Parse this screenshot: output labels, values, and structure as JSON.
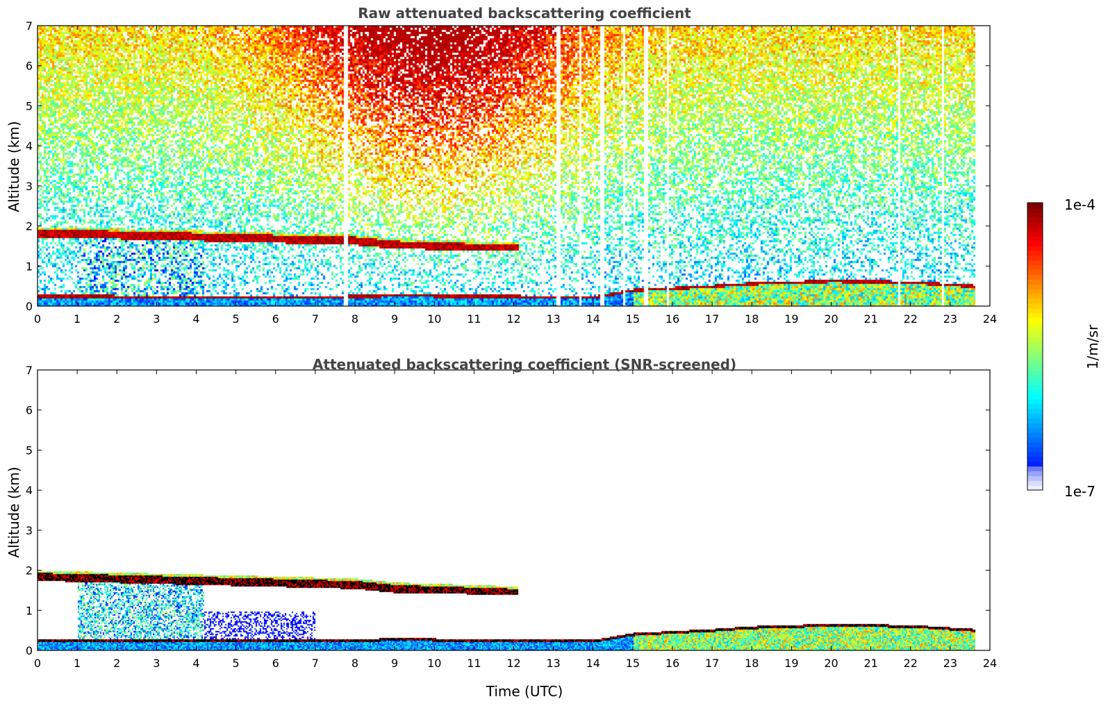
{
  "chart_data": [
    {
      "type": "heatmap",
      "title": "Raw attenuated backscattering coefficient",
      "xlabel": "",
      "ylabel": "Altitude (km)",
      "xlim": [
        0,
        24
      ],
      "ylim": [
        0,
        7
      ],
      "xticks": [
        0,
        1,
        2,
        3,
        4,
        5,
        6,
        7,
        8,
        9,
        10,
        11,
        12,
        13,
        14,
        15,
        16,
        17,
        18,
        19,
        20,
        21,
        22,
        23,
        24
      ],
      "yticks": [
        0,
        1,
        2,
        3,
        4,
        5,
        6,
        7
      ],
      "data_end_time": 23.6,
      "layers": [
        {
          "name": "upper cloud layer",
          "x": [
            0,
            4,
            8,
            9,
            12.1
          ],
          "top": [
            1.95,
            1.85,
            1.75,
            1.65,
            1.55
          ],
          "base": [
            1.75,
            1.65,
            1.55,
            1.45,
            1.4
          ]
        },
        {
          "name": "boundary layer top",
          "x": [
            0,
            7,
            9,
            14,
            15,
            17,
            18,
            20,
            22,
            23.6
          ],
          "altitude": [
            0.3,
            0.28,
            0.32,
            0.28,
            0.45,
            0.55,
            0.62,
            0.68,
            0.65,
            0.55
          ]
        }
      ],
      "data_gaps_utc": [
        7.75,
        13.1,
        13.65,
        14.2,
        14.75,
        15.3,
        15.85,
        21.7,
        22.8
      ]
    },
    {
      "type": "heatmap",
      "title": "Attenuated backscattering coefficient (SNR-screened)",
      "xlabel": "Time (UTC)",
      "ylabel": "Altitude (km)",
      "xlim": [
        0,
        24
      ],
      "ylim": [
        0,
        7
      ],
      "xticks": [
        0,
        1,
        2,
        3,
        4,
        5,
        6,
        7,
        8,
        9,
        10,
        11,
        12,
        13,
        14,
        15,
        16,
        17,
        18,
        19,
        20,
        21,
        22,
        23,
        24
      ],
      "yticks": [
        0,
        1,
        2,
        3,
        4,
        5,
        6,
        7
      ],
      "data_end_time": 23.6,
      "layers": [
        {
          "name": "upper cloud layer",
          "x": [
            0,
            4,
            8,
            9,
            12.1
          ],
          "top": [
            1.95,
            1.85,
            1.75,
            1.65,
            1.55
          ],
          "base": [
            1.75,
            1.65,
            1.55,
            1.45,
            1.4
          ]
        },
        {
          "name": "boundary layer top",
          "x": [
            0,
            7,
            9,
            14,
            15,
            17,
            18,
            20,
            22,
            23.6
          ],
          "altitude": [
            0.3,
            0.28,
            0.32,
            0.28,
            0.45,
            0.55,
            0.62,
            0.68,
            0.65,
            0.55
          ]
        }
      ]
    }
  ],
  "colorbar": {
    "label": "1/m/sr",
    "max_label": "1e-4",
    "min_label": "1e-7",
    "scale": "log",
    "range": [
      1e-07,
      0.0001
    ]
  }
}
